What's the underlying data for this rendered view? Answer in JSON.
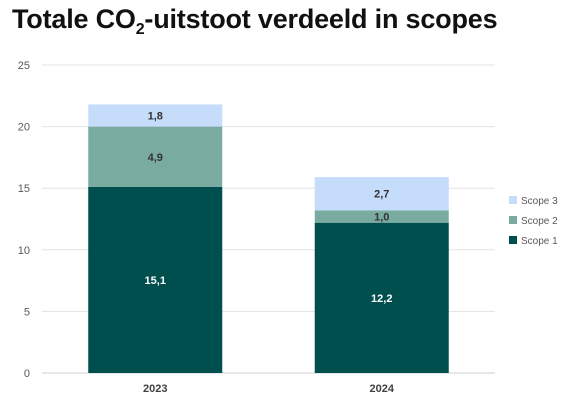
{
  "title": {
    "prefix": "Totale CO",
    "sub": "2",
    "suffix": "-uitstoot verdeeld in scopes"
  },
  "chart_data": {
    "type": "bar",
    "stacked": true,
    "title": "Totale CO2-uitstoot verdeeld in scopes",
    "categories": [
      "2023",
      "2024"
    ],
    "series": [
      {
        "name": "Scope 1",
        "values": [
          15.1,
          12.2
        ],
        "labels": [
          "15,1",
          "12,2"
        ],
        "color": "#004f4f",
        "label_color": "#ffffff"
      },
      {
        "name": "Scope 2",
        "values": [
          4.9,
          1.0
        ],
        "labels": [
          "4,9",
          "1,0"
        ],
        "color": "#79aba1",
        "label_color": "#333333"
      },
      {
        "name": "Scope 3",
        "values": [
          1.8,
          2.7
        ],
        "labels": [
          "1,8",
          "2,7"
        ],
        "color": "#c5dcfa",
        "label_color": "#333333"
      }
    ],
    "ylim": [
      0,
      25
    ],
    "yticks": [
      0,
      5,
      10,
      15,
      20,
      25
    ],
    "grid": true,
    "legend": "right"
  }
}
